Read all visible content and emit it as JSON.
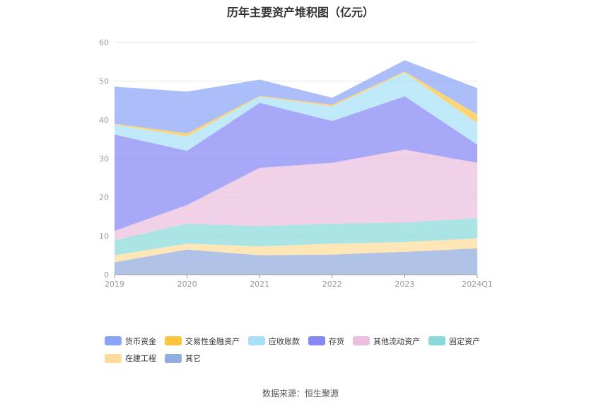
{
  "chart_data": {
    "type": "area",
    "stacked": true,
    "title": "历年主要资产堆积图（亿元）",
    "categories": [
      "2019",
      "2020",
      "2021",
      "2022",
      "2023",
      "2024Q1"
    ],
    "ylim": [
      0,
      60
    ],
    "yticks": [
      0,
      10,
      20,
      30,
      40,
      50,
      60
    ],
    "grid": true,
    "legend_position": "bottom",
    "series": [
      {
        "name": "其它",
        "color": "#91acde",
        "values": [
          3.2,
          6.5,
          5.0,
          5.2,
          5.9,
          6.8
        ]
      },
      {
        "name": "在建工程",
        "color": "#fddc9b",
        "values": [
          1.8,
          1.5,
          2.3,
          2.8,
          2.5,
          2.6
        ]
      },
      {
        "name": "固定资产",
        "color": "#8ad9d9",
        "values": [
          3.9,
          5.2,
          5.2,
          5.2,
          5.1,
          5.2
        ]
      },
      {
        "name": "其他流动资产",
        "color": "#ecbfde",
        "values": [
          2.4,
          4.8,
          15.1,
          15.7,
          18.8,
          14.3
        ]
      },
      {
        "name": "存货",
        "color": "#8588f5",
        "values": [
          24.9,
          14.0,
          16.8,
          10.8,
          13.8,
          4.7
        ]
      },
      {
        "name": "应收账款",
        "color": "#a8e0f8",
        "values": [
          2.6,
          3.7,
          1.6,
          3.8,
          6.1,
          5.5
        ]
      },
      {
        "name": "交易性金融资产",
        "color": "#fdc53f",
        "values": [
          0.2,
          0.8,
          0.2,
          0.4,
          0.3,
          2.3
        ]
      },
      {
        "name": "货币资金",
        "color": "#8aa5f8",
        "values": [
          9.6,
          10.8,
          4.2,
          1.8,
          2.9,
          6.8
        ]
      }
    ]
  },
  "legend_order": [
    "货币资金",
    "交易性金融资产",
    "应收账款",
    "存货",
    "其他流动资产",
    "固定资产",
    "在建工程",
    "其它"
  ],
  "source_text": "数据来源：恒生聚源"
}
